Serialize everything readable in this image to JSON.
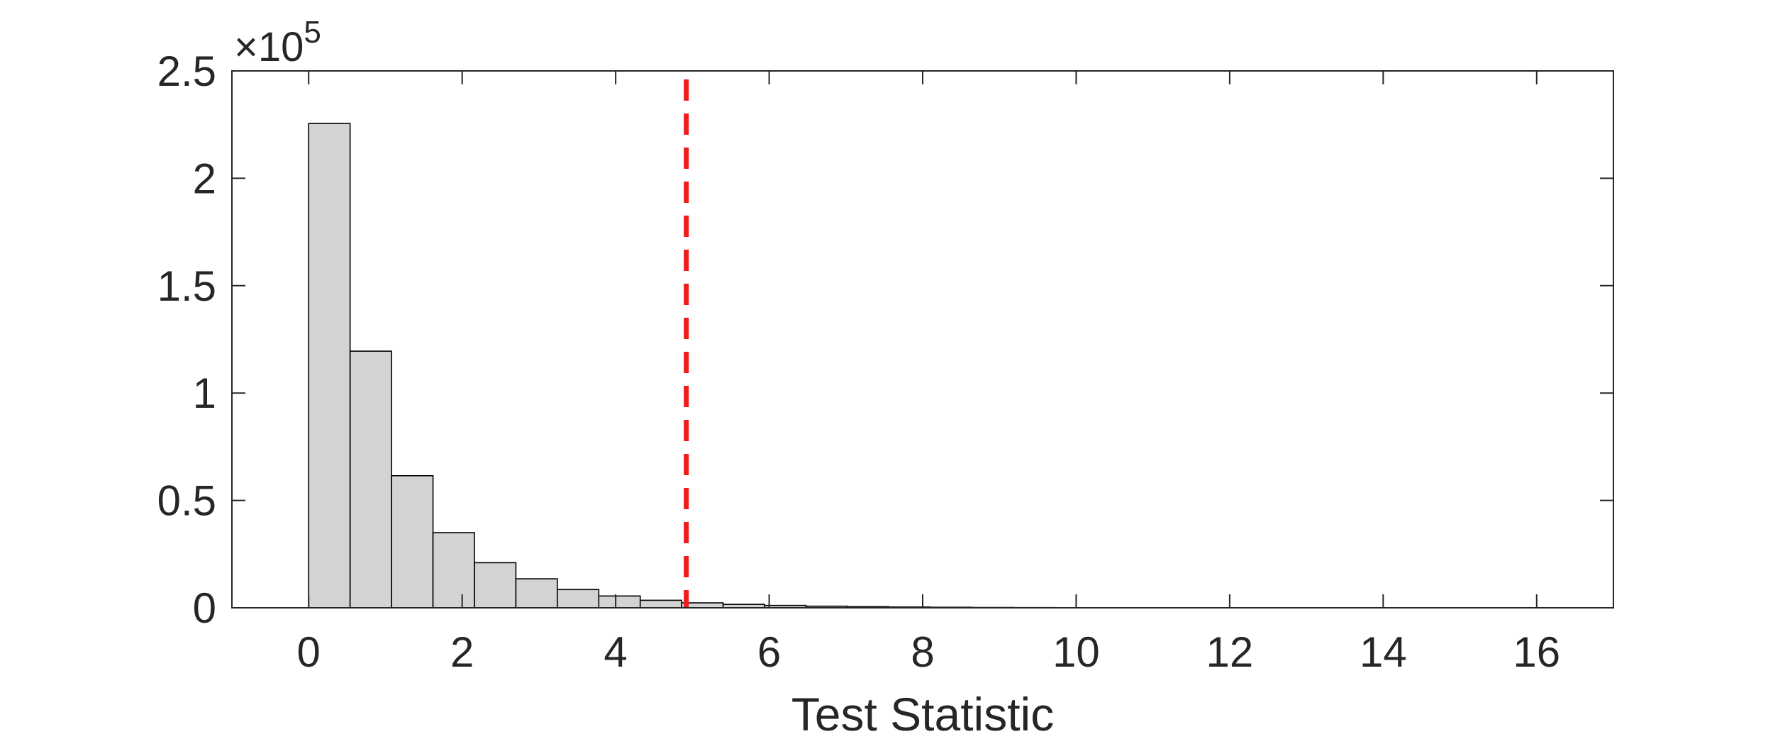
{
  "chart_data": {
    "type": "bar",
    "subtype": "histogram",
    "title": "",
    "xlabel": "Test Statistic",
    "ylabel": "",
    "xlim": [
      -1,
      17
    ],
    "ylim": [
      0,
      250000
    ],
    "x_ticks": [
      0,
      2,
      4,
      6,
      8,
      10,
      12,
      14,
      16
    ],
    "y_ticks": [
      0,
      0.5,
      1,
      1.5,
      2,
      2.5
    ],
    "y_tick_labels": [
      "0",
      "0.5",
      "1",
      "1.5",
      "2",
      "2.5"
    ],
    "y_multiplier_base": "×10",
    "y_multiplier_exponent": "5",
    "bin_width": 0.54,
    "bins": [
      {
        "x0": 0.0,
        "count": 225500
      },
      {
        "x0": 0.54,
        "count": 119500
      },
      {
        "x0": 1.08,
        "count": 61500
      },
      {
        "x0": 1.62,
        "count": 35000
      },
      {
        "x0": 2.16,
        "count": 21000
      },
      {
        "x0": 2.7,
        "count": 13500
      },
      {
        "x0": 3.24,
        "count": 8500
      },
      {
        "x0": 3.78,
        "count": 5500
      },
      {
        "x0": 4.32,
        "count": 3500
      },
      {
        "x0": 4.86,
        "count": 2300
      },
      {
        "x0": 5.4,
        "count": 1600
      },
      {
        "x0": 5.94,
        "count": 1100
      },
      {
        "x0": 6.48,
        "count": 750
      },
      {
        "x0": 7.02,
        "count": 500
      },
      {
        "x0": 7.56,
        "count": 350
      },
      {
        "x0": 8.1,
        "count": 250
      },
      {
        "x0": 8.64,
        "count": 150
      },
      {
        "x0": 9.18,
        "count": 100
      },
      {
        "x0": 9.72,
        "count": 70
      },
      {
        "x0": 10.26,
        "count": 50
      },
      {
        "x0": 10.8,
        "count": 35
      },
      {
        "x0": 11.34,
        "count": 25
      },
      {
        "x0": 11.88,
        "count": 18
      },
      {
        "x0": 12.42,
        "count": 12
      },
      {
        "x0": 12.96,
        "count": 8
      },
      {
        "x0": 13.5,
        "count": 6
      },
      {
        "x0": 14.04,
        "count": 4
      },
      {
        "x0": 14.58,
        "count": 3
      },
      {
        "x0": 15.12,
        "count": 2
      },
      {
        "x0": 15.66,
        "count": 1
      }
    ],
    "threshold": {
      "x": 4.92,
      "color": "#ee1c1c",
      "style": "dashed"
    },
    "bar_fill": "#d3d3d3",
    "bar_edge": "#000000",
    "grid": false,
    "legend": "none"
  }
}
